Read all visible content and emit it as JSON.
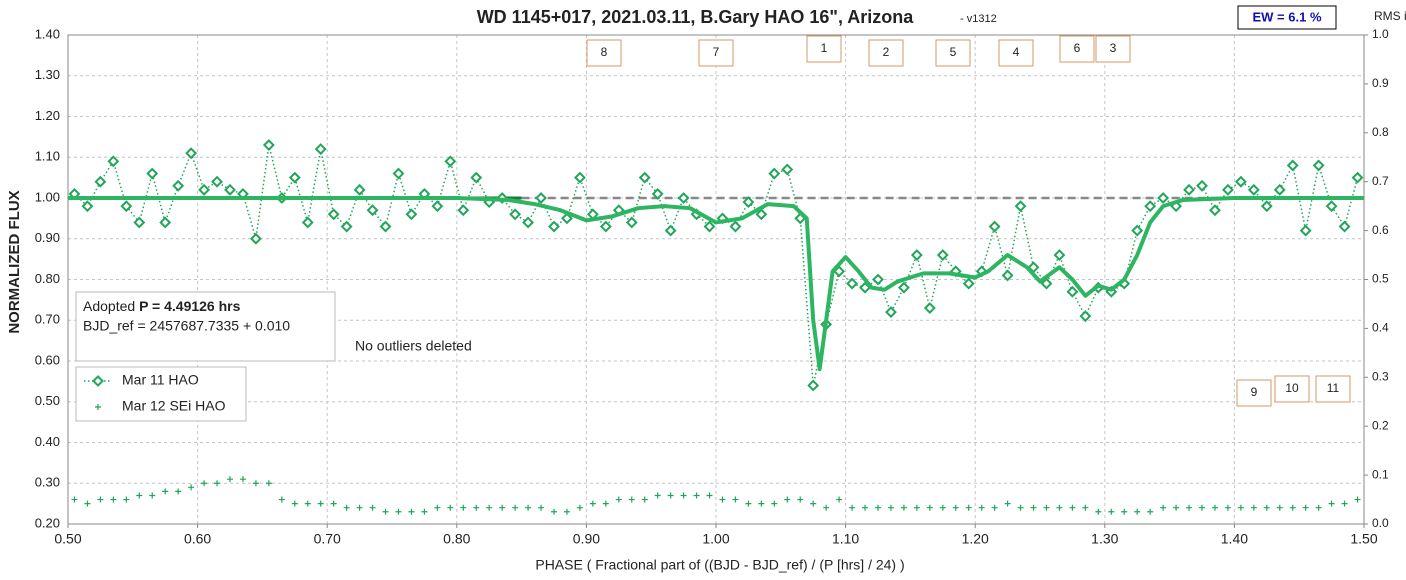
{
  "chart_data": {
    "type": "line",
    "title": "WD 1145+017, 2021.03.11, B.Gary HAO 16\", Arizona",
    "subtitle": "- v1312",
    "x_label": "PHASE ( Fractional part of ((BJD - BJD_ref) / (P [hrs] / 24) )",
    "y_label": "NORMALIZED FLUX",
    "y2_label": "RMS i",
    "ew_label": "EW = 6.1 %",
    "info": {
      "label": "Adopted",
      "period": "P = 4.49126 hrs",
      "bjd": "BJD_ref = 2457687.7335 + 0.010"
    },
    "note": "No outliers deleted",
    "dip_labels": [
      "8",
      "7",
      "1",
      "2",
      "5",
      "4",
      "6",
      "3",
      "9",
      "10",
      "11"
    ],
    "grid": true,
    "legend": "lower-left",
    "xlim": [
      0.5,
      1.5
    ],
    "xticks": [
      {
        "value": 0.5,
        "label": "0.50"
      },
      {
        "value": 0.6,
        "label": "0.60"
      },
      {
        "value": 0.7,
        "label": "0.70"
      },
      {
        "value": 0.8,
        "label": "0.80"
      },
      {
        "value": 0.9,
        "label": "0.90"
      },
      {
        "value": 1.0,
        "label": "1.00"
      },
      {
        "value": 1.1,
        "label": "1.10"
      },
      {
        "value": 1.2,
        "label": "1.20"
      },
      {
        "value": 1.3,
        "label": "1.30"
      },
      {
        "value": 1.4,
        "label": "1.40"
      },
      {
        "value": 1.5,
        "label": "1.50"
      }
    ],
    "ylim": [
      0.2,
      1.4
    ],
    "yticks": [
      {
        "value": 0.2,
        "label": "0.20"
      },
      {
        "value": 0.3,
        "label": "0.30"
      },
      {
        "value": 0.4,
        "label": "0.40"
      },
      {
        "value": 0.5,
        "label": "0.50"
      },
      {
        "value": 0.6,
        "label": "0.60"
      },
      {
        "value": 0.7,
        "label": "0.70"
      },
      {
        "value": 0.8,
        "label": "0.80"
      },
      {
        "value": 0.9,
        "label": "0.90"
      },
      {
        "value": 1.0,
        "label": "1.00"
      },
      {
        "value": 1.1,
        "label": "1.10"
      },
      {
        "value": 1.2,
        "label": "1.20"
      },
      {
        "value": 1.3,
        "label": "1.30"
      },
      {
        "value": 1.4,
        "label": "1.40"
      }
    ],
    "y2lim": [
      0,
      1
    ],
    "y2ticks": [
      {
        "value": 0,
        "label": "0.0"
      },
      {
        "value": 0.1,
        "label": "0.1"
      },
      {
        "value": 0.2,
        "label": "0.2"
      },
      {
        "value": 0.3,
        "label": "0.3"
      },
      {
        "value": 0.4,
        "label": "0.4"
      },
      {
        "value": 0.5,
        "label": "0.5"
      },
      {
        "value": 0.6,
        "label": "0.6"
      },
      {
        "value": 0.7,
        "label": "0.7"
      },
      {
        "value": 0.8,
        "label": "0.8"
      },
      {
        "value": 0.9,
        "label": "0.9"
      },
      {
        "value": 1,
        "label": "1.0"
      }
    ],
    "reference_line": {
      "y": 1.0,
      "dashed_from": 0.85
    },
    "series": [
      {
        "name": "Mar 11 HAO",
        "color": "#21a55a",
        "marker": "diamond",
        "line": "dotted",
        "x": [
          0.505,
          0.515,
          0.525,
          0.535,
          0.545,
          0.555,
          0.565,
          0.575,
          0.585,
          0.595,
          0.605,
          0.615,
          0.625,
          0.635,
          0.645,
          0.655,
          0.665,
          0.675,
          0.685,
          0.695,
          0.705,
          0.715,
          0.725,
          0.735,
          0.745,
          0.755,
          0.765,
          0.775,
          0.785,
          0.795,
          0.805,
          0.815,
          0.825,
          0.835,
          0.845,
          0.855,
          0.865,
          0.875,
          0.885,
          0.895,
          0.905,
          0.915,
          0.925,
          0.935,
          0.945,
          0.955,
          0.965,
          0.975,
          0.985,
          0.995,
          1.005,
          1.015,
          1.025,
          1.035,
          1.045,
          1.055,
          1.065,
          1.075,
          1.085,
          1.095,
          1.105,
          1.115,
          1.125,
          1.135,
          1.145,
          1.155,
          1.165,
          1.175,
          1.185,
          1.195,
          1.205,
          1.215,
          1.225,
          1.235,
          1.245,
          1.255,
          1.265,
          1.275,
          1.285,
          1.295,
          1.305,
          1.315,
          1.325,
          1.335,
          1.345,
          1.355,
          1.365,
          1.375,
          1.385,
          1.395,
          1.405,
          1.415,
          1.425,
          1.435,
          1.445,
          1.455,
          1.465,
          1.475,
          1.485,
          1.495
        ],
        "values": [
          1.01,
          0.98,
          1.04,
          1.09,
          0.98,
          0.94,
          1.06,
          0.94,
          1.03,
          1.11,
          1.02,
          1.04,
          1.02,
          1.01,
          0.9,
          1.13,
          1.0,
          1.05,
          0.94,
          1.12,
          0.96,
          0.93,
          1.02,
          0.97,
          0.93,
          1.06,
          0.96,
          1.01,
          0.98,
          1.09,
          0.97,
          1.05,
          0.99,
          1.0,
          0.96,
          0.94,
          1.0,
          0.93,
          0.95,
          1.05,
          0.96,
          0.93,
          0.97,
          0.94,
          1.05,
          1.01,
          0.92,
          1.0,
          0.96,
          0.93,
          0.95,
          0.93,
          0.99,
          0.96,
          1.06,
          1.07,
          0.95,
          0.54,
          0.69,
          0.82,
          0.79,
          0.78,
          0.8,
          0.72,
          0.78,
          0.86,
          0.73,
          0.86,
          0.82,
          0.79,
          0.82,
          0.93,
          0.81,
          0.98,
          0.83,
          0.79,
          0.86,
          0.77,
          0.71,
          0.78,
          0.77,
          0.79,
          0.92,
          0.98,
          1.0,
          0.98,
          1.02,
          1.03,
          0.97,
          1.02,
          1.04,
          1.02,
          0.98,
          1.02,
          1.08,
          0.92,
          1.08,
          0.98,
          0.93,
          1.05
        ]
      },
      {
        "name": "Mar 12 SEi HAO",
        "color": "#21a55a",
        "marker": "plus",
        "line": "none",
        "x": [
          0.505,
          0.515,
          0.525,
          0.535,
          0.545,
          0.555,
          0.565,
          0.575,
          0.585,
          0.595,
          0.605,
          0.615,
          0.625,
          0.635,
          0.645,
          0.655,
          0.665,
          0.675,
          0.685,
          0.695,
          0.705,
          0.715,
          0.725,
          0.735,
          0.745,
          0.755,
          0.765,
          0.775,
          0.785,
          0.795,
          0.805,
          0.815,
          0.825,
          0.835,
          0.845,
          0.855,
          0.865,
          0.875,
          0.885,
          0.895,
          0.905,
          0.915,
          0.925,
          0.935,
          0.945,
          0.955,
          0.965,
          0.975,
          0.985,
          0.995,
          1.005,
          1.015,
          1.025,
          1.035,
          1.045,
          1.055,
          1.065,
          1.075,
          1.085,
          1.095,
          1.105,
          1.115,
          1.125,
          1.135,
          1.145,
          1.155,
          1.165,
          1.175,
          1.185,
          1.195,
          1.205,
          1.215,
          1.225,
          1.235,
          1.245,
          1.255,
          1.265,
          1.275,
          1.285,
          1.295,
          1.305,
          1.315,
          1.325,
          1.335,
          1.345,
          1.355,
          1.365,
          1.375,
          1.385,
          1.395,
          1.405,
          1.415,
          1.425,
          1.435,
          1.445,
          1.455,
          1.465,
          1.475,
          1.485,
          1.495
        ],
        "values": [
          0.26,
          0.25,
          0.26,
          0.26,
          0.26,
          0.27,
          0.27,
          0.28,
          0.28,
          0.29,
          0.3,
          0.3,
          0.31,
          0.31,
          0.3,
          0.3,
          0.26,
          0.25,
          0.25,
          0.25,
          0.25,
          0.24,
          0.24,
          0.24,
          0.23,
          0.23,
          0.23,
          0.23,
          0.24,
          0.24,
          0.24,
          0.24,
          0.24,
          0.24,
          0.24,
          0.24,
          0.24,
          0.23,
          0.23,
          0.24,
          0.25,
          0.25,
          0.26,
          0.26,
          0.26,
          0.27,
          0.27,
          0.27,
          0.27,
          0.27,
          0.26,
          0.26,
          0.25,
          0.25,
          0.25,
          0.26,
          0.26,
          0.25,
          0.24,
          0.26,
          0.24,
          0.24,
          0.24,
          0.24,
          0.24,
          0.24,
          0.24,
          0.24,
          0.24,
          0.24,
          0.24,
          0.24,
          0.25,
          0.24,
          0.24,
          0.24,
          0.24,
          0.24,
          0.24,
          0.23,
          0.23,
          0.23,
          0.23,
          0.23,
          0.24,
          0.24,
          0.24,
          0.24,
          0.24,
          0.24,
          0.24,
          0.24,
          0.24,
          0.24,
          0.24,
          0.24,
          0.24,
          0.25,
          0.25,
          0.26
        ]
      },
      {
        "color": "#2eb562",
        "marker": "none",
        "line": "solid",
        "x": [
          0.5,
          0.6,
          0.7,
          0.8,
          0.84,
          0.86,
          0.88,
          0.9,
          0.92,
          0.94,
          0.96,
          0.98,
          1.0,
          1.02,
          1.04,
          1.06,
          1.07,
          1.075,
          1.08,
          1.085,
          1.09,
          1.1,
          1.11,
          1.12,
          1.13,
          1.14,
          1.16,
          1.18,
          1.2,
          1.21,
          1.225,
          1.24,
          1.25,
          1.265,
          1.275,
          1.285,
          1.295,
          1.305,
          1.315,
          1.325,
          1.335,
          1.345,
          1.36,
          1.4,
          1.5
        ],
        "values": [
          1.0,
          1.0,
          1.0,
          1.0,
          0.995,
          0.985,
          0.97,
          0.945,
          0.955,
          0.975,
          0.98,
          0.975,
          0.94,
          0.95,
          0.985,
          0.98,
          0.95,
          0.7,
          0.58,
          0.7,
          0.82,
          0.855,
          0.82,
          0.78,
          0.775,
          0.795,
          0.815,
          0.815,
          0.805,
          0.82,
          0.86,
          0.83,
          0.795,
          0.83,
          0.8,
          0.76,
          0.785,
          0.775,
          0.8,
          0.86,
          0.94,
          0.98,
          0.995,
          1.0,
          1.0
        ]
      }
    ]
  }
}
